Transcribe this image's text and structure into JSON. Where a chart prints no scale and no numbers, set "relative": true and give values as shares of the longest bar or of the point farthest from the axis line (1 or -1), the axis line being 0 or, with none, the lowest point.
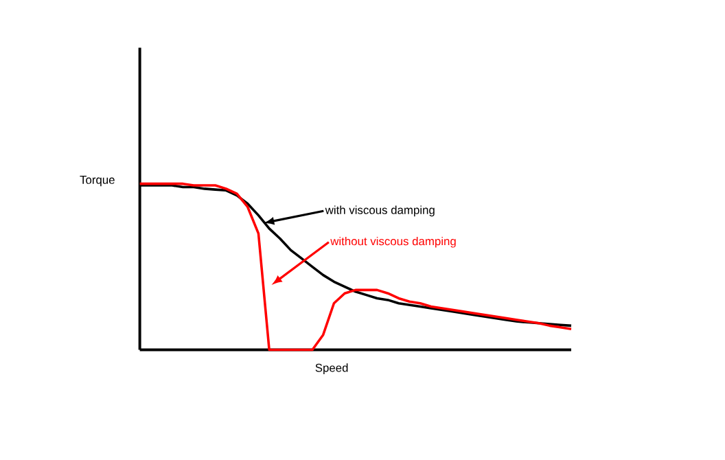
{
  "chart_data": {
    "type": "line",
    "relative": true,
    "xlabel": "Speed",
    "ylabel": "Torque",
    "tick_labels": false,
    "legend": "top",
    "marker": "none",
    "line_style": "solid",
    "categories": [
      null,
      null,
      null,
      null,
      null,
      null,
      null,
      null,
      null,
      null,
      null,
      null,
      null,
      null,
      null,
      null,
      null,
      null,
      null,
      null,
      null,
      null,
      null,
      null,
      null,
      null,
      null,
      null,
      null,
      null,
      null,
      null,
      null,
      null,
      null,
      null,
      null,
      null,
      null,
      null,
      null
    ],
    "series": [
      {
        "name": "with viscous damping",
        "color": "#000000",
        "values": [
          0.99,
          0.99,
          0.99,
          0.99,
          0.98,
          0.98,
          0.97,
          0.965,
          0.96,
          0.93,
          0.88,
          0.81,
          0.73,
          0.67,
          0.6,
          0.55,
          0.5,
          0.45,
          0.41,
          0.38,
          0.35,
          0.33,
          0.31,
          0.3,
          0.28,
          0.27,
          0.26,
          0.25,
          0.24,
          0.23,
          0.22,
          0.21,
          0.2,
          0.19,
          0.18,
          0.17,
          0.165,
          0.16,
          0.155,
          0.15,
          0.145
        ]
      },
      {
        "name": "without viscous damping",
        "color": "#ff0000",
        "values": [
          1,
          1,
          1,
          1,
          1,
          0.99,
          0.99,
          0.99,
          0.97,
          0.94,
          0.86,
          0.7,
          0,
          0,
          0,
          0,
          0,
          0.09,
          0.28,
          0.34,
          0.36,
          0.36,
          0.36,
          0.34,
          0.31,
          0.29,
          0.28,
          0.26,
          0.25,
          0.24,
          0.23,
          0.22,
          0.21,
          0.2,
          0.19,
          0.18,
          0.17,
          0.16,
          0.145,
          0.135,
          0.125
        ]
      }
    ]
  }
}
